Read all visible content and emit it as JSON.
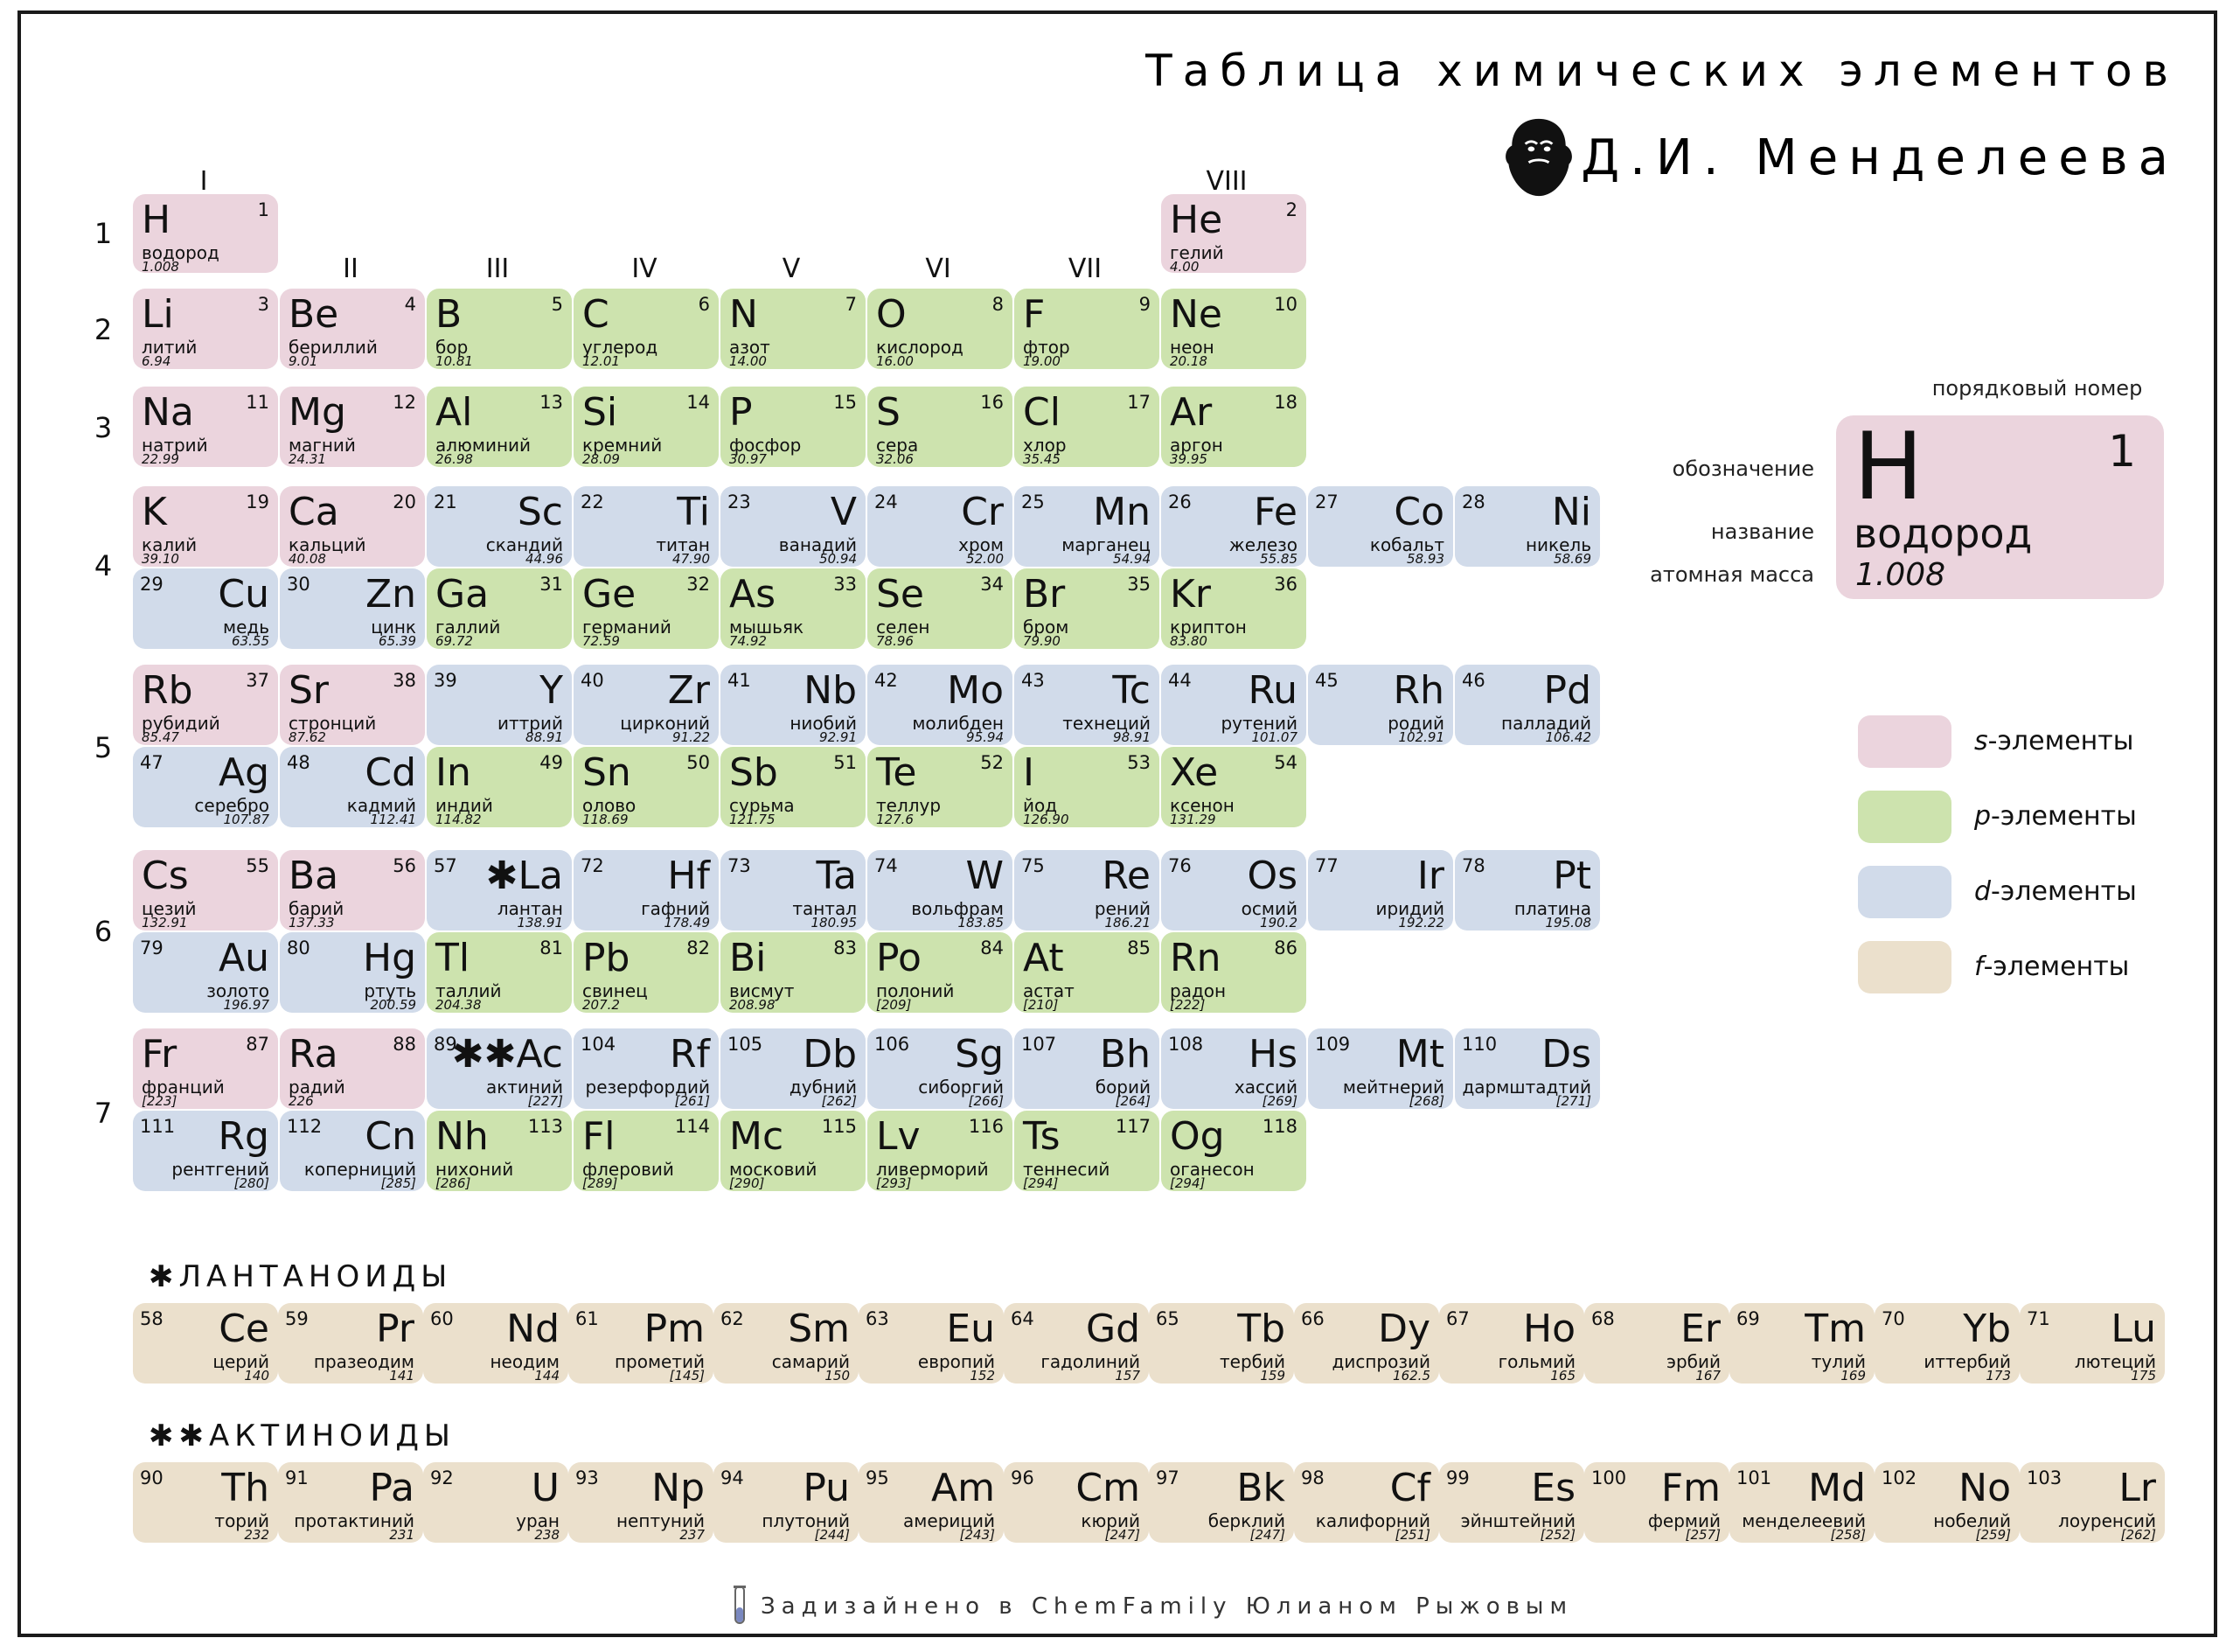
{
  "title": {
    "line1": "Таблица химических элементов",
    "line2": "Д.И. Менделеева"
  },
  "group_labels": [
    "I",
    "II",
    "III",
    "IV",
    "V",
    "VI",
    "VII",
    "VIII"
  ],
  "period_labels": [
    "1",
    "2",
    "3",
    "4",
    "5",
    "6",
    "7"
  ],
  "elements": [
    {
      "n": "1",
      "sym": "H",
      "name": "водород",
      "mass": "1.008",
      "type": "s"
    },
    {
      "n": "2",
      "sym": "He",
      "name": "гелий",
      "mass": "4.00",
      "type": "s"
    },
    {
      "n": "3",
      "sym": "Li",
      "name": "литий",
      "mass": "6.94",
      "type": "s"
    },
    {
      "n": "4",
      "sym": "Be",
      "name": "бериллий",
      "mass": "9.01",
      "type": "s"
    },
    {
      "n": "5",
      "sym": "B",
      "name": "бор",
      "mass": "10.81",
      "type": "p"
    },
    {
      "n": "6",
      "sym": "C",
      "name": "углерод",
      "mass": "12.01",
      "type": "p"
    },
    {
      "n": "7",
      "sym": "N",
      "name": "азот",
      "mass": "14.00",
      "type": "p"
    },
    {
      "n": "8",
      "sym": "O",
      "name": "кислород",
      "mass": "16.00",
      "type": "p"
    },
    {
      "n": "9",
      "sym": "F",
      "name": "фтор",
      "mass": "19.00",
      "type": "p"
    },
    {
      "n": "10",
      "sym": "Ne",
      "name": "неон",
      "mass": "20.18",
      "type": "p"
    },
    {
      "n": "11",
      "sym": "Na",
      "name": "натрий",
      "mass": "22.99",
      "type": "s"
    },
    {
      "n": "12",
      "sym": "Mg",
      "name": "магний",
      "mass": "24.31",
      "type": "s"
    },
    {
      "n": "13",
      "sym": "Al",
      "name": "алюминий",
      "mass": "26.98",
      "type": "p"
    },
    {
      "n": "14",
      "sym": "Si",
      "name": "кремний",
      "mass": "28.09",
      "type": "p"
    },
    {
      "n": "15",
      "sym": "P",
      "name": "фосфор",
      "mass": "30.97",
      "type": "p"
    },
    {
      "n": "16",
      "sym": "S",
      "name": "сера",
      "mass": "32.06",
      "type": "p"
    },
    {
      "n": "17",
      "sym": "Cl",
      "name": "хлор",
      "mass": "35.45",
      "type": "p"
    },
    {
      "n": "18",
      "sym": "Ar",
      "name": "аргон",
      "mass": "39.95",
      "type": "p"
    },
    {
      "n": "19",
      "sym": "K",
      "name": "калий",
      "mass": "39.10",
      "type": "s"
    },
    {
      "n": "20",
      "sym": "Ca",
      "name": "кальций",
      "mass": "40.08",
      "type": "s"
    },
    {
      "n": "21",
      "sym": "Sc",
      "name": "скандий",
      "mass": "44.96",
      "type": "d"
    },
    {
      "n": "22",
      "sym": "Ti",
      "name": "титан",
      "mass": "47.90",
      "type": "d"
    },
    {
      "n": "23",
      "sym": "V",
      "name": "ванадий",
      "mass": "50.94",
      "type": "d"
    },
    {
      "n": "24",
      "sym": "Cr",
      "name": "хром",
      "mass": "52.00",
      "type": "d"
    },
    {
      "n": "25",
      "sym": "Mn",
      "name": "марганец",
      "mass": "54.94",
      "type": "d"
    },
    {
      "n": "26",
      "sym": "Fe",
      "name": "железо",
      "mass": "55.85",
      "type": "d"
    },
    {
      "n": "27",
      "sym": "Co",
      "name": "кобальт",
      "mass": "58.93",
      "type": "d"
    },
    {
      "n": "28",
      "sym": "Ni",
      "name": "никель",
      "mass": "58.69",
      "type": "d"
    },
    {
      "n": "29",
      "sym": "Cu",
      "name": "медь",
      "mass": "63.55",
      "type": "d"
    },
    {
      "n": "30",
      "sym": "Zn",
      "name": "цинк",
      "mass": "65.39",
      "type": "d"
    },
    {
      "n": "31",
      "sym": "Ga",
      "name": "галлий",
      "mass": "69.72",
      "type": "p"
    },
    {
      "n": "32",
      "sym": "Ge",
      "name": "германий",
      "mass": "72.59",
      "type": "p"
    },
    {
      "n": "33",
      "sym": "As",
      "name": "мышьяк",
      "mass": "74.92",
      "type": "p"
    },
    {
      "n": "34",
      "sym": "Se",
      "name": "селен",
      "mass": "78.96",
      "type": "p"
    },
    {
      "n": "35",
      "sym": "Br",
      "name": "бром",
      "mass": "79.90",
      "type": "p"
    },
    {
      "n": "36",
      "sym": "Kr",
      "name": "криптон",
      "mass": "83.80",
      "type": "p"
    },
    {
      "n": "37",
      "sym": "Rb",
      "name": "рубидий",
      "mass": "85.47",
      "type": "s"
    },
    {
      "n": "38",
      "sym": "Sr",
      "name": "стронций",
      "mass": "87.62",
      "type": "s"
    },
    {
      "n": "39",
      "sym": "Y",
      "name": "иттрий",
      "mass": "88.91",
      "type": "d"
    },
    {
      "n": "40",
      "sym": "Zr",
      "name": "цирконий",
      "mass": "91.22",
      "type": "d"
    },
    {
      "n": "41",
      "sym": "Nb",
      "name": "ниобий",
      "mass": "92.91",
      "type": "d"
    },
    {
      "n": "42",
      "sym": "Mo",
      "name": "молибден",
      "mass": "95.94",
      "type": "d"
    },
    {
      "n": "43",
      "sym": "Tc",
      "name": "технеций",
      "mass": "98.91",
      "type": "d"
    },
    {
      "n": "44",
      "sym": "Ru",
      "name": "рутений",
      "mass": "101.07",
      "type": "d"
    },
    {
      "n": "45",
      "sym": "Rh",
      "name": "родий",
      "mass": "102.91",
      "type": "d"
    },
    {
      "n": "46",
      "sym": "Pd",
      "name": "палладий",
      "mass": "106.42",
      "type": "d"
    },
    {
      "n": "47",
      "sym": "Ag",
      "name": "серебро",
      "mass": "107.87",
      "type": "d"
    },
    {
      "n": "48",
      "sym": "Cd",
      "name": "кадмий",
      "mass": "112.41",
      "type": "d"
    },
    {
      "n": "49",
      "sym": "In",
      "name": "индий",
      "mass": "114.82",
      "type": "p"
    },
    {
      "n": "50",
      "sym": "Sn",
      "name": "олово",
      "mass": "118.69",
      "type": "p"
    },
    {
      "n": "51",
      "sym": "Sb",
      "name": "сурьма",
      "mass": "121.75",
      "type": "p"
    },
    {
      "n": "52",
      "sym": "Te",
      "name": "теллур",
      "mass": "127.6",
      "type": "p"
    },
    {
      "n": "53",
      "sym": "I",
      "name": "йод",
      "mass": "126.90",
      "type": "p"
    },
    {
      "n": "54",
      "sym": "Xe",
      "name": "ксенон",
      "mass": "131.29",
      "type": "p"
    },
    {
      "n": "55",
      "sym": "Cs",
      "name": "цезий",
      "mass": "132.91",
      "type": "s"
    },
    {
      "n": "56",
      "sym": "Ba",
      "name": "барий",
      "mass": "137.33",
      "type": "s"
    },
    {
      "n": "57",
      "sym": "✱La",
      "name": "лантан",
      "mass": "138.91",
      "type": "d"
    },
    {
      "n": "72",
      "sym": "Hf",
      "name": "гафний",
      "mass": "178.49",
      "type": "d"
    },
    {
      "n": "73",
      "sym": "Ta",
      "name": "тантал",
      "mass": "180.95",
      "type": "d"
    },
    {
      "n": "74",
      "sym": "W",
      "name": "вольфрам",
      "mass": "183.85",
      "type": "d"
    },
    {
      "n": "75",
      "sym": "Re",
      "name": "рений",
      "mass": "186.21",
      "type": "d"
    },
    {
      "n": "76",
      "sym": "Os",
      "name": "осмий",
      "mass": "190.2",
      "type": "d"
    },
    {
      "n": "77",
      "sym": "Ir",
      "name": "иридий",
      "mass": "192.22",
      "type": "d"
    },
    {
      "n": "78",
      "sym": "Pt",
      "name": "платина",
      "mass": "195.08",
      "type": "d"
    },
    {
      "n": "79",
      "sym": "Au",
      "name": "золото",
      "mass": "196.97",
      "type": "d"
    },
    {
      "n": "80",
      "sym": "Hg",
      "name": "ртуть",
      "mass": "200.59",
      "type": "d"
    },
    {
      "n": "81",
      "sym": "Tl",
      "name": "таллий",
      "mass": "204.38",
      "type": "p"
    },
    {
      "n": "82",
      "sym": "Pb",
      "name": "свинец",
      "mass": "207.2",
      "type": "p"
    },
    {
      "n": "83",
      "sym": "Bi",
      "name": "висмут",
      "mass": "208.98",
      "type": "p"
    },
    {
      "n": "84",
      "sym": "Po",
      "name": "полоний",
      "mass": "[209]",
      "type": "p"
    },
    {
      "n": "85",
      "sym": "At",
      "name": "астат",
      "mass": "[210]",
      "type": "p"
    },
    {
      "n": "86",
      "sym": "Rn",
      "name": "радон",
      "mass": "[222]",
      "type": "p"
    },
    {
      "n": "87",
      "sym": "Fr",
      "name": "франций",
      "mass": "[223]",
      "type": "s"
    },
    {
      "n": "88",
      "sym": "Ra",
      "name": "радий",
      "mass": "226",
      "type": "s"
    },
    {
      "n": "89",
      "sym": "✱✱Ac",
      "name": "актиний",
      "mass": "[227]",
      "type": "d"
    },
    {
      "n": "104",
      "sym": "Rf",
      "name": "резерфордий",
      "mass": "[261]",
      "type": "d"
    },
    {
      "n": "105",
      "sym": "Db",
      "name": "дубний",
      "mass": "[262]",
      "type": "d"
    },
    {
      "n": "106",
      "sym": "Sg",
      "name": "сиборгий",
      "mass": "[266]",
      "type": "d"
    },
    {
      "n": "107",
      "sym": "Bh",
      "name": "борий",
      "mass": "[264]",
      "type": "d"
    },
    {
      "n": "108",
      "sym": "Hs",
      "name": "хассий",
      "mass": "[269]",
      "type": "d"
    },
    {
      "n": "109",
      "sym": "Mt",
      "name": "мейтнерий",
      "mass": "[268]",
      "type": "d"
    },
    {
      "n": "110",
      "sym": "Ds",
      "name": "дармштадтий",
      "mass": "[271]",
      "type": "d"
    },
    {
      "n": "111",
      "sym": "Rg",
      "name": "рентгений",
      "mass": "[280]",
      "type": "d"
    },
    {
      "n": "112",
      "sym": "Cn",
      "name": "коперниций",
      "mass": "[285]",
      "type": "d"
    },
    {
      "n": "113",
      "sym": "Nh",
      "name": "нихоний",
      "mass": "[286]",
      "type": "p"
    },
    {
      "n": "114",
      "sym": "Fl",
      "name": "флеровий",
      "mass": "[289]",
      "type": "p"
    },
    {
      "n": "115",
      "sym": "Mc",
      "name": "московий",
      "mass": "[290]",
      "type": "p"
    },
    {
      "n": "116",
      "sym": "Lv",
      "name": "ливерморий",
      "mass": "[293]",
      "type": "p"
    },
    {
      "n": "117",
      "sym": "Ts",
      "name": "теннесий",
      "mass": "[294]",
      "type": "p"
    },
    {
      "n": "118",
      "sym": "Og",
      "name": "оганесон",
      "mass": "[294]",
      "type": "p"
    }
  ],
  "lanthanoids": {
    "title": "✱ЛАНТАНОИДЫ",
    "items": [
      {
        "n": "58",
        "sym": "Ce",
        "name": "церий",
        "mass": "140"
      },
      {
        "n": "59",
        "sym": "Pr",
        "name": "празеодим",
        "mass": "141"
      },
      {
        "n": "60",
        "sym": "Nd",
        "name": "неодим",
        "mass": "144"
      },
      {
        "n": "61",
        "sym": "Pm",
        "name": "прометий",
        "mass": "[145]"
      },
      {
        "n": "62",
        "sym": "Sm",
        "name": "самарий",
        "mass": "150"
      },
      {
        "n": "63",
        "sym": "Eu",
        "name": "европий",
        "mass": "152"
      },
      {
        "n": "64",
        "sym": "Gd",
        "name": "гадолиний",
        "mass": "157"
      },
      {
        "n": "65",
        "sym": "Tb",
        "name": "тербий",
        "mass": "159"
      },
      {
        "n": "66",
        "sym": "Dy",
        "name": "диспрозий",
        "mass": "162.5"
      },
      {
        "n": "67",
        "sym": "Ho",
        "name": "гольмий",
        "mass": "165"
      },
      {
        "n": "68",
        "sym": "Er",
        "name": "эрбий",
        "mass": "167"
      },
      {
        "n": "69",
        "sym": "Tm",
        "name": "тулий",
        "mass": "169"
      },
      {
        "n": "70",
        "sym": "Yb",
        "name": "иттербий",
        "mass": "173"
      },
      {
        "n": "71",
        "sym": "Lu",
        "name": "лютеций",
        "mass": "175"
      }
    ]
  },
  "actinoids": {
    "title": "✱✱АКТИНОИДЫ",
    "items": [
      {
        "n": "90",
        "sym": "Th",
        "name": "торий",
        "mass": "232"
      },
      {
        "n": "91",
        "sym": "Pa",
        "name": "протактиний",
        "mass": "231"
      },
      {
        "n": "92",
        "sym": "U",
        "name": "уран",
        "mass": "238"
      },
      {
        "n": "93",
        "sym": "Np",
        "name": "нептуний",
        "mass": "237"
      },
      {
        "n": "94",
        "sym": "Pu",
        "name": "плутоний",
        "mass": "[244]"
      },
      {
        "n": "95",
        "sym": "Am",
        "name": "америций",
        "mass": "[243]"
      },
      {
        "n": "96",
        "sym": "Cm",
        "name": "кюрий",
        "mass": "[247]"
      },
      {
        "n": "97",
        "sym": "Bk",
        "name": "берклий",
        "mass": "[247]"
      },
      {
        "n": "98",
        "sym": "Cf",
        "name": "калифорний",
        "mass": "[251]"
      },
      {
        "n": "99",
        "sym": "Es",
        "name": "эйнштейний",
        "mass": "[252]"
      },
      {
        "n": "100",
        "sym": "Fm",
        "name": "фермий",
        "mass": "[257]"
      },
      {
        "n": "101",
        "sym": "Md",
        "name": "менделеевий",
        "mass": "[258]"
      },
      {
        "n": "102",
        "sym": "No",
        "name": "нобелий",
        "mass": "[259]"
      },
      {
        "n": "103",
        "sym": "Lr",
        "name": "лоуренсий",
        "mass": "[262]"
      }
    ]
  },
  "key": {
    "label_number": "порядковый номер",
    "label_symbol": "обозначение",
    "label_name": "название",
    "label_mass": "атомная масса",
    "sym": "H",
    "num": "1",
    "name": "водород",
    "mass": "1.008"
  },
  "legend": [
    {
      "type": "s",
      "prefix": "s",
      "text": "-элементы",
      "color": "#ebd4dd"
    },
    {
      "type": "p",
      "prefix": "p",
      "text": "-элементы",
      "color": "#cde3ae"
    },
    {
      "type": "d",
      "prefix": "d",
      "text": "-элементы",
      "color": "#d1dbea"
    },
    {
      "type": "f",
      "prefix": "f",
      "text": "-элементы",
      "color": "#ebe0cc"
    }
  ],
  "footer": "Задизайнено в ChemFamily Юлианом Рыжовым",
  "colors": {
    "s": "#ebd4dd",
    "p": "#cde3ae",
    "d": "#d1dbea",
    "f": "#ebe0cc"
  }
}
